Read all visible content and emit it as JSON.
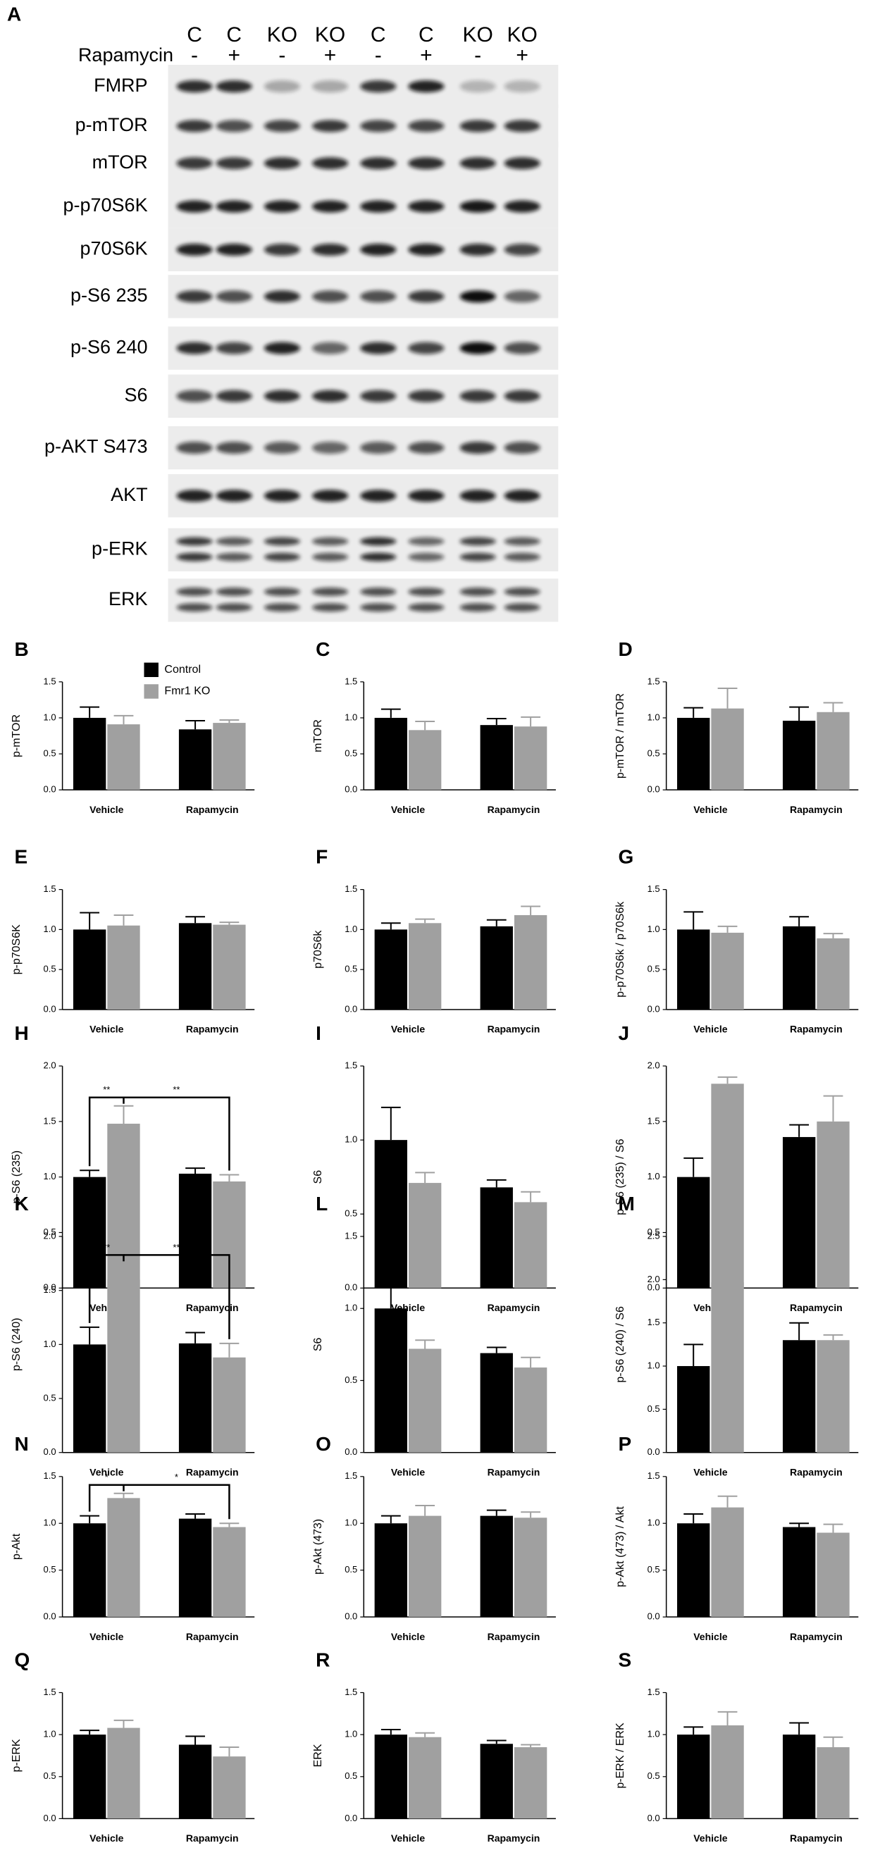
{
  "blot": {
    "panel": "A",
    "treatment_label": "Rapamycin",
    "lanes": [
      "C",
      "C",
      "KO",
      "KO",
      "C",
      "C",
      "KO",
      "KO"
    ],
    "treatment": [
      "-",
      "+",
      "-",
      "+",
      "-",
      "+",
      "-",
      "+"
    ],
    "rows": [
      "FMRP",
      "p-mTOR",
      "mTOR",
      "p-p70S6K",
      "p70S6K",
      "p-S6 235",
      "p-S6 240",
      "S6",
      "p-AKT S473",
      "AKT",
      "p-ERK",
      "ERK"
    ]
  },
  "chart_data": [
    {
      "type": "bar",
      "panel": "B",
      "y_label": "p-mTOR",
      "categories": [
        "Vehicle",
        "Rapamycin"
      ],
      "legend": true,
      "series": [
        {
          "name": "Control",
          "color": "#000000",
          "values": [
            1.0,
            0.84
          ],
          "errors": [
            0.15,
            0.12
          ]
        },
        {
          "name": "Fmr1 KO",
          "color": "#a0a0a0",
          "values": [
            0.91,
            0.93
          ],
          "errors": [
            0.12,
            0.04
          ]
        }
      ],
      "ylim": [
        0,
        1.5
      ],
      "yticks": [
        {
          "value": 0,
          "label": "0.0"
        },
        {
          "value": 0.5,
          "label": "0.5"
        },
        {
          "value": 1,
          "label": "1.0"
        },
        {
          "value": 1.5,
          "label": "1.5"
        }
      ]
    },
    {
      "type": "bar",
      "panel": "C",
      "y_label": "mTOR",
      "categories": [
        "Vehicle",
        "Rapamycin"
      ],
      "series": [
        {
          "color": "#000000",
          "values": [
            1.0,
            0.9
          ],
          "errors": [
            0.12,
            0.09
          ]
        },
        {
          "color": "#a0a0a0",
          "values": [
            0.83,
            0.88
          ],
          "errors": [
            0.12,
            0.13
          ]
        }
      ],
      "ylim": [
        0,
        1.5
      ],
      "yticks": [
        {
          "value": 0,
          "label": "0.0"
        },
        {
          "value": 0.5,
          "label": "0.5"
        },
        {
          "value": 1,
          "label": "1.0"
        },
        {
          "value": 1.5,
          "label": "1.5"
        }
      ]
    },
    {
      "type": "bar",
      "panel": "D",
      "y_label": "p-mTOR / mTOR",
      "categories": [
        "Vehicle",
        "Rapamycin"
      ],
      "series": [
        {
          "color": "#000000",
          "values": [
            1.0,
            0.96
          ],
          "errors": [
            0.14,
            0.19
          ]
        },
        {
          "color": "#a0a0a0",
          "values": [
            1.13,
            1.08
          ],
          "errors": [
            0.28,
            0.13
          ]
        }
      ],
      "ylim": [
        0,
        1.5
      ],
      "yticks": [
        {
          "value": 0,
          "label": "0.0"
        },
        {
          "value": 0.5,
          "label": "0.5"
        },
        {
          "value": 1,
          "label": "1.0"
        },
        {
          "value": 1.5,
          "label": "1.5"
        }
      ]
    },
    {
      "type": "bar",
      "panel": "E",
      "y_label": "p-p70S6K",
      "categories": [
        "Vehicle",
        "Rapamycin"
      ],
      "series": [
        {
          "color": "#000000",
          "values": [
            1.0,
            1.08
          ],
          "errors": [
            0.21,
            0.08
          ]
        },
        {
          "color": "#a0a0a0",
          "values": [
            1.05,
            1.06
          ],
          "errors": [
            0.13,
            0.03
          ]
        }
      ],
      "ylim": [
        0,
        1.5
      ],
      "yticks": [
        {
          "value": 0,
          "label": "0.0"
        },
        {
          "value": 0.5,
          "label": "0.5"
        },
        {
          "value": 1,
          "label": "1.0"
        },
        {
          "value": 1.5,
          "label": "1.5"
        }
      ]
    },
    {
      "type": "bar",
      "panel": "F",
      "y_label": "p70S6k",
      "categories": [
        "Vehicle",
        "Rapamycin"
      ],
      "series": [
        {
          "color": "#000000",
          "values": [
            1.0,
            1.04
          ],
          "errors": [
            0.08,
            0.08
          ]
        },
        {
          "color": "#a0a0a0",
          "values": [
            1.08,
            1.18
          ],
          "errors": [
            0.05,
            0.11
          ]
        }
      ],
      "ylim": [
        0,
        1.5
      ],
      "yticks": [
        {
          "value": 0,
          "label": "0.0"
        },
        {
          "value": 0.5,
          "label": "0.5"
        },
        {
          "value": 1,
          "label": "1.0"
        },
        {
          "value": 1.5,
          "label": "1.5"
        }
      ]
    },
    {
      "type": "bar",
      "panel": "G",
      "y_label": "p-p70S6k / p70S6k",
      "categories": [
        "Vehicle",
        "Rapamycin"
      ],
      "series": [
        {
          "color": "#000000",
          "values": [
            1.0,
            1.04
          ],
          "errors": [
            0.22,
            0.12
          ]
        },
        {
          "color": "#a0a0a0",
          "values": [
            0.96,
            0.89
          ],
          "errors": [
            0.08,
            0.06
          ]
        }
      ],
      "ylim": [
        0,
        1.5
      ],
      "yticks": [
        {
          "value": 0,
          "label": "0.0"
        },
        {
          "value": 0.5,
          "label": "0.5"
        },
        {
          "value": 1,
          "label": "1.0"
        },
        {
          "value": 1.5,
          "label": "1.5"
        }
      ]
    },
    {
      "type": "bar",
      "panel": "H",
      "y_label": "p-S6 (235)",
      "categories": [
        "Vehicle",
        "Rapamycin"
      ],
      "annotations": [
        "**",
        "**"
      ],
      "series": [
        {
          "color": "#000000",
          "values": [
            1.0,
            1.03
          ],
          "errors": [
            0.06,
            0.05
          ]
        },
        {
          "color": "#a0a0a0",
          "values": [
            1.48,
            0.96
          ],
          "errors": [
            0.16,
            0.06
          ]
        }
      ],
      "ylim": [
        0,
        2
      ],
      "yticks": [
        {
          "value": 0,
          "label": "0.0"
        },
        {
          "value": 0.5,
          "label": "0.5"
        },
        {
          "value": 1,
          "label": "1.0"
        },
        {
          "value": 1.5,
          "label": "1.5"
        },
        {
          "value": 2,
          "label": "2.0"
        }
      ]
    },
    {
      "type": "bar",
      "panel": "I",
      "y_label": "S6",
      "categories": [
        "Vehicle",
        "Rapamycin"
      ],
      "series": [
        {
          "color": "#000000",
          "values": [
            1.0,
            0.68
          ],
          "errors": [
            0.22,
            0.05
          ]
        },
        {
          "color": "#a0a0a0",
          "values": [
            0.71,
            0.58
          ],
          "errors": [
            0.07,
            0.07
          ]
        }
      ],
      "ylim": [
        0,
        1.5
      ],
      "yticks": [
        {
          "value": 0,
          "label": "0.0"
        },
        {
          "value": 0.5,
          "label": "0.5"
        },
        {
          "value": 1,
          "label": "1.0"
        },
        {
          "value": 1.5,
          "label": "1.5"
        }
      ]
    },
    {
      "type": "bar",
      "panel": "J",
      "y_label": "p-S6 (235) / S6",
      "categories": [
        "Vehicle",
        "Rapamycin"
      ],
      "series": [
        {
          "color": "#000000",
          "values": [
            1.0,
            1.36
          ],
          "errors": [
            0.17,
            0.11
          ]
        },
        {
          "color": "#a0a0a0",
          "values": [
            1.84,
            1.5
          ],
          "errors": [
            0.06,
            0.23
          ]
        }
      ],
      "ylim": [
        0,
        2
      ],
      "yticks": [
        {
          "value": 0,
          "label": "0.0"
        },
        {
          "value": 0.5,
          "label": "0.5"
        },
        {
          "value": 1,
          "label": "1.0"
        },
        {
          "value": 1.5,
          "label": "1.5"
        },
        {
          "value": 2,
          "label": "2.0"
        }
      ]
    },
    {
      "type": "bar",
      "panel": "K",
      "y_label": "p-S6 (240)",
      "categories": [
        "Vehicle",
        "Rapamycin"
      ],
      "annotations": [
        "**",
        "**"
      ],
      "series": [
        {
          "color": "#000000",
          "values": [
            1.0,
            1.01
          ],
          "errors": [
            0.16,
            0.1
          ]
        },
        {
          "color": "#a0a0a0",
          "values": [
            1.6,
            0.88
          ],
          "errors": [
            0.15,
            0.13
          ]
        }
      ],
      "ylim": [
        0,
        2
      ],
      "yticks": [
        {
          "value": 0,
          "label": "0.0"
        },
        {
          "value": 0.5,
          "label": "0.5"
        },
        {
          "value": 1,
          "label": "1.0"
        },
        {
          "value": 1.5,
          "label": "1.5"
        },
        {
          "value": 2,
          "label": "2.0"
        }
      ]
    },
    {
      "type": "bar",
      "panel": "L",
      "y_label": "S6",
      "categories": [
        "Vehicle",
        "Rapamycin"
      ],
      "series": [
        {
          "color": "#000000",
          "values": [
            1.0,
            0.69
          ],
          "errors": [
            0.22,
            0.04
          ]
        },
        {
          "color": "#a0a0a0",
          "values": [
            0.72,
            0.59
          ],
          "errors": [
            0.06,
            0.07
          ]
        }
      ],
      "ylim": [
        0,
        1.5
      ],
      "yticks": [
        {
          "value": 0,
          "label": "0.0"
        },
        {
          "value": 0.5,
          "label": "0.5"
        },
        {
          "value": 1,
          "label": "1.0"
        },
        {
          "value": 1.5,
          "label": "1.5"
        }
      ]
    },
    {
      "type": "bar",
      "panel": "M",
      "y_label": "p-S6 (240) / S6",
      "categories": [
        "Vehicle",
        "Rapamycin"
      ],
      "series": [
        {
          "color": "#000000",
          "values": [
            1.0,
            1.3
          ],
          "errors": [
            0.25,
            0.2
          ]
        },
        {
          "color": "#a0a0a0",
          "values": [
            1.97,
            1.3
          ],
          "errors": [
            0.35,
            0.06
          ]
        }
      ],
      "ylim": [
        0,
        2.5
      ],
      "yticks": [
        {
          "value": 0,
          "label": "0.0"
        },
        {
          "value": 0.5,
          "label": "0.5"
        },
        {
          "value": 1,
          "label": "1.0"
        },
        {
          "value": 1.5,
          "label": "1.5"
        },
        {
          "value": 2,
          "label": "2.0"
        },
        {
          "value": 2.5,
          "label": "2.5"
        }
      ]
    },
    {
      "type": "bar",
      "panel": "N",
      "y_label": "p-Akt",
      "categories": [
        "Vehicle",
        "Rapamycin"
      ],
      "annotations": [
        "*",
        "*"
      ],
      "series": [
        {
          "color": "#000000",
          "values": [
            1.0,
            1.05
          ],
          "errors": [
            0.08,
            0.05
          ]
        },
        {
          "color": "#a0a0a0",
          "values": [
            1.27,
            0.96
          ],
          "errors": [
            0.05,
            0.04
          ]
        }
      ],
      "ylim": [
        0,
        1.5
      ],
      "yticks": [
        {
          "value": 0,
          "label": "0.0"
        },
        {
          "value": 0.5,
          "label": "0.5"
        },
        {
          "value": 1,
          "label": "1.0"
        },
        {
          "value": 1.5,
          "label": "1.5"
        }
      ]
    },
    {
      "type": "bar",
      "panel": "O",
      "y_label": "p-Akt (473)",
      "categories": [
        "Vehicle",
        "Rapamycin"
      ],
      "series": [
        {
          "color": "#000000",
          "values": [
            1.0,
            1.08
          ],
          "errors": [
            0.08,
            0.06
          ]
        },
        {
          "color": "#a0a0a0",
          "values": [
            1.08,
            1.06
          ],
          "errors": [
            0.11,
            0.06
          ]
        }
      ],
      "ylim": [
        0,
        1.5
      ],
      "yticks": [
        {
          "value": 0,
          "label": "0.0"
        },
        {
          "value": 0.5,
          "label": "0.5"
        },
        {
          "value": 1,
          "label": "1.0"
        },
        {
          "value": 1.5,
          "label": "1.5"
        }
      ]
    },
    {
      "type": "bar",
      "panel": "P",
      "y_label": "p-Akt (473) / Akt",
      "categories": [
        "Vehicle",
        "Rapamycin"
      ],
      "series": [
        {
          "color": "#000000",
          "values": [
            1.0,
            0.96
          ],
          "errors": [
            0.1,
            0.04
          ]
        },
        {
          "color": "#a0a0a0",
          "values": [
            1.17,
            0.9
          ],
          "errors": [
            0.12,
            0.09
          ]
        }
      ],
      "ylim": [
        0,
        1.5
      ],
      "yticks": [
        {
          "value": 0,
          "label": "0.0"
        },
        {
          "value": 0.5,
          "label": "0.5"
        },
        {
          "value": 1,
          "label": "1.0"
        },
        {
          "value": 1.5,
          "label": "1.5"
        }
      ]
    },
    {
      "type": "bar",
      "panel": "Q",
      "y_label": "p-ERK",
      "categories": [
        "Vehicle",
        "Rapamycin"
      ],
      "series": [
        {
          "color": "#000000",
          "values": [
            1.0,
            0.88
          ],
          "errors": [
            0.05,
            0.1
          ]
        },
        {
          "color": "#a0a0a0",
          "values": [
            1.08,
            0.74
          ],
          "errors": [
            0.09,
            0.11
          ]
        }
      ],
      "ylim": [
        0,
        1.5
      ],
      "yticks": [
        {
          "value": 0,
          "label": "0.0"
        },
        {
          "value": 0.5,
          "label": "0.5"
        },
        {
          "value": 1,
          "label": "1.0"
        },
        {
          "value": 1.5,
          "label": "1.5"
        }
      ]
    },
    {
      "type": "bar",
      "panel": "R",
      "y_label": "ERK",
      "categories": [
        "Vehicle",
        "Rapamycin"
      ],
      "series": [
        {
          "color": "#000000",
          "values": [
            1.0,
            0.89
          ],
          "errors": [
            0.06,
            0.04
          ]
        },
        {
          "color": "#a0a0a0",
          "values": [
            0.97,
            0.85
          ],
          "errors": [
            0.05,
            0.03
          ]
        }
      ],
      "ylim": [
        0,
        1.5
      ],
      "yticks": [
        {
          "value": 0,
          "label": "0.0"
        },
        {
          "value": 0.5,
          "label": "0.5"
        },
        {
          "value": 1,
          "label": "1.0"
        },
        {
          "value": 1.5,
          "label": "1.5"
        }
      ]
    },
    {
      "type": "bar",
      "panel": "S",
      "y_label": "p-ERK / ERK",
      "categories": [
        "Vehicle",
        "Rapamycin"
      ],
      "series": [
        {
          "color": "#000000",
          "values": [
            1.0,
            1.0
          ],
          "errors": [
            0.09,
            0.14
          ]
        },
        {
          "color": "#a0a0a0",
          "values": [
            1.11,
            0.85
          ],
          "errors": [
            0.16,
            0.12
          ]
        }
      ],
      "ylim": [
        0,
        1.5
      ],
      "yticks": [
        {
          "value": 0,
          "label": "0.0"
        },
        {
          "value": 0.5,
          "label": "0.5"
        },
        {
          "value": 1,
          "label": "1.0"
        },
        {
          "value": 1.5,
          "label": "1.5"
        }
      ]
    }
  ]
}
